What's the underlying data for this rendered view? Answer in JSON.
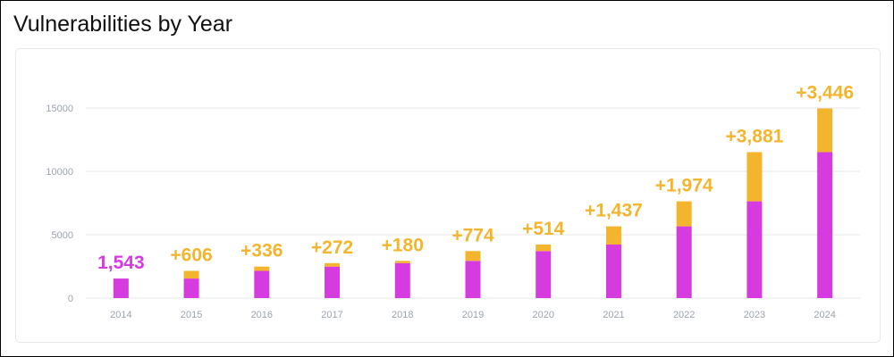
{
  "page": {
    "title": "Vulnerabilities by Year"
  },
  "colors": {
    "base": "#d63be0",
    "increase": "#f2b52d",
    "grid": "#e5e7eb",
    "tick_label": "#9ca3af",
    "title": "#111111"
  },
  "chart_data": {
    "type": "bar",
    "stacked": true,
    "categories": [
      "2014",
      "2015",
      "2016",
      "2017",
      "2018",
      "2019",
      "2020",
      "2021",
      "2022",
      "2023",
      "2024"
    ],
    "series": [
      {
        "values": [
          1543,
          1543,
          2149,
          2485,
          2757,
          2937,
          3711,
          4225,
          5662,
          7636,
          11517
        ]
      },
      {
        "values": [
          0,
          606,
          336,
          272,
          180,
          774,
          514,
          1437,
          1974,
          3881,
          3446
        ]
      }
    ],
    "bar_labels": [
      "1,543",
      "+606",
      "+336",
      "+272",
      "+180",
      "+774",
      "+514",
      "+1,437",
      "+1,974",
      "+3,881",
      "+3,446"
    ],
    "bar_label_colors": [
      "base",
      "increase",
      "increase",
      "increase",
      "increase",
      "increase",
      "increase",
      "increase",
      "increase",
      "increase",
      "increase"
    ],
    "y_ticks": [
      "0",
      "5000",
      "10000",
      "15000"
    ],
    "ylim": [
      0,
      15000
    ],
    "grid": true,
    "legend": "none"
  }
}
